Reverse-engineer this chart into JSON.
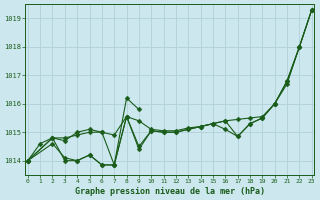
{
  "title": "Graphe pression niveau de la mer (hPa)",
  "bg_color": "#cce8ee",
  "grid_color": "#b0d0d8",
  "line_color": "#1a5c1a",
  "x_min": 0,
  "x_max": 23,
  "y_min": 1013.5,
  "y_max": 1019.5,
  "yticks": [
    1014,
    1015,
    1016,
    1017,
    1018,
    1019
  ],
  "xticks": [
    0,
    1,
    2,
    3,
    4,
    5,
    6,
    7,
    8,
    9,
    10,
    11,
    12,
    13,
    14,
    15,
    16,
    17,
    18,
    19,
    20,
    21,
    22,
    23
  ],
  "series": [
    {
      "x": [
        0,
        1,
        2,
        3,
        4,
        5,
        6,
        7,
        8,
        9,
        10,
        11,
        12,
        13,
        14,
        15,
        16,
        17,
        18,
        19,
        20,
        21,
        22,
        23
      ],
      "y": [
        1014.0,
        1014.6,
        1014.8,
        1014.8,
        1014.9,
        1015.0,
        1015.0,
        1014.9,
        1015.55,
        1015.4,
        1015.1,
        1015.05,
        1015.05,
        1015.15,
        1015.2,
        1015.3,
        1015.4,
        1015.45,
        1015.5,
        1015.55,
        1016.0,
        1016.8,
        1018.0,
        1019.3
      ]
    },
    {
      "x": [
        0,
        2,
        3,
        4,
        5,
        6,
        7,
        8,
        9,
        10,
        11,
        12,
        13,
        14,
        15,
        16,
        17,
        18,
        19,
        20,
        21,
        22,
        23
      ],
      "y": [
        1014.0,
        1014.8,
        1014.0,
        1014.0,
        1014.2,
        1013.85,
        1013.85,
        1015.55,
        1014.5,
        1015.05,
        1015.0,
        1015.0,
        1015.1,
        1015.2,
        1015.3,
        1015.4,
        1014.85,
        1015.3,
        1015.5,
        1016.0,
        1016.8,
        1018.0,
        1019.3
      ]
    },
    {
      "x": [
        0,
        2,
        3,
        4,
        5,
        6,
        7,
        8,
        9
      ],
      "y": [
        1014.0,
        1014.8,
        1014.7,
        1015.0,
        1015.1,
        1015.0,
        1013.85,
        1016.2,
        1015.8
      ]
    },
    {
      "x": [
        0,
        2,
        3,
        4,
        5,
        6,
        7,
        8,
        9,
        10,
        11,
        12,
        13,
        14,
        15,
        16,
        17,
        18,
        19,
        20,
        21,
        22,
        23
      ],
      "y": [
        1014.0,
        1014.6,
        1014.1,
        1014.0,
        1014.2,
        1013.85,
        1013.85,
        1015.55,
        1014.4,
        1015.05,
        1015.0,
        1015.0,
        1015.1,
        1015.2,
        1015.3,
        1015.1,
        1014.85,
        1015.3,
        1015.5,
        1016.0,
        1016.7,
        1018.0,
        1019.3
      ]
    }
  ]
}
